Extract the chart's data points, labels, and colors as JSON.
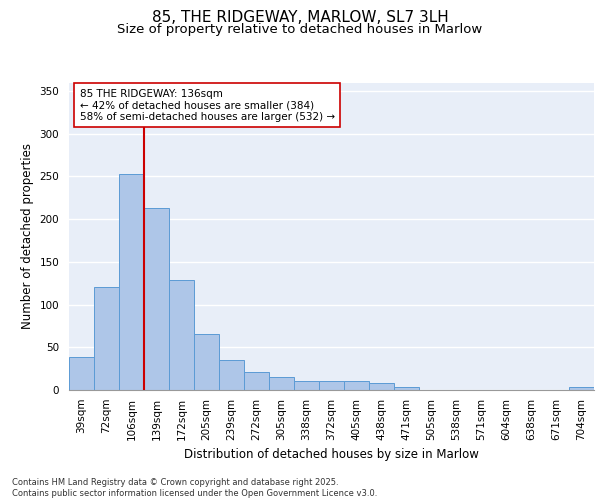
{
  "title_line1": "85, THE RIDGEWAY, MARLOW, SL7 3LH",
  "title_line2": "Size of property relative to detached houses in Marlow",
  "xlabel": "Distribution of detached houses by size in Marlow",
  "ylabel": "Number of detached properties",
  "categories": [
    "39sqm",
    "72sqm",
    "106sqm",
    "139sqm",
    "172sqm",
    "205sqm",
    "239sqm",
    "272sqm",
    "305sqm",
    "338sqm",
    "372sqm",
    "405sqm",
    "438sqm",
    "471sqm",
    "505sqm",
    "538sqm",
    "571sqm",
    "604sqm",
    "638sqm",
    "671sqm",
    "704sqm"
  ],
  "values": [
    39,
    121,
    253,
    213,
    129,
    65,
    35,
    21,
    15,
    10,
    10,
    10,
    8,
    3,
    0,
    0,
    0,
    0,
    0,
    0,
    3
  ],
  "bar_color": "#aec6e8",
  "bar_edge_color": "#5b9bd5",
  "vline_x": 2.5,
  "vline_color": "#cc0000",
  "annotation_text": "85 THE RIDGEWAY: 136sqm\n← 42% of detached houses are smaller (384)\n58% of semi-detached houses are larger (532) →",
  "annotation_box_color": "#ffffff",
  "annotation_box_edge": "#cc0000",
  "ylim": [
    0,
    360
  ],
  "yticks": [
    0,
    50,
    100,
    150,
    200,
    250,
    300,
    350
  ],
  "background_color": "#e8eef8",
  "grid_color": "#ffffff",
  "footer": "Contains HM Land Registry data © Crown copyright and database right 2025.\nContains public sector information licensed under the Open Government Licence v3.0.",
  "title_fontsize": 11,
  "subtitle_fontsize": 9.5,
  "axis_label_fontsize": 8.5,
  "tick_fontsize": 7.5,
  "annotation_fontsize": 7.5,
  "footer_fontsize": 6
}
